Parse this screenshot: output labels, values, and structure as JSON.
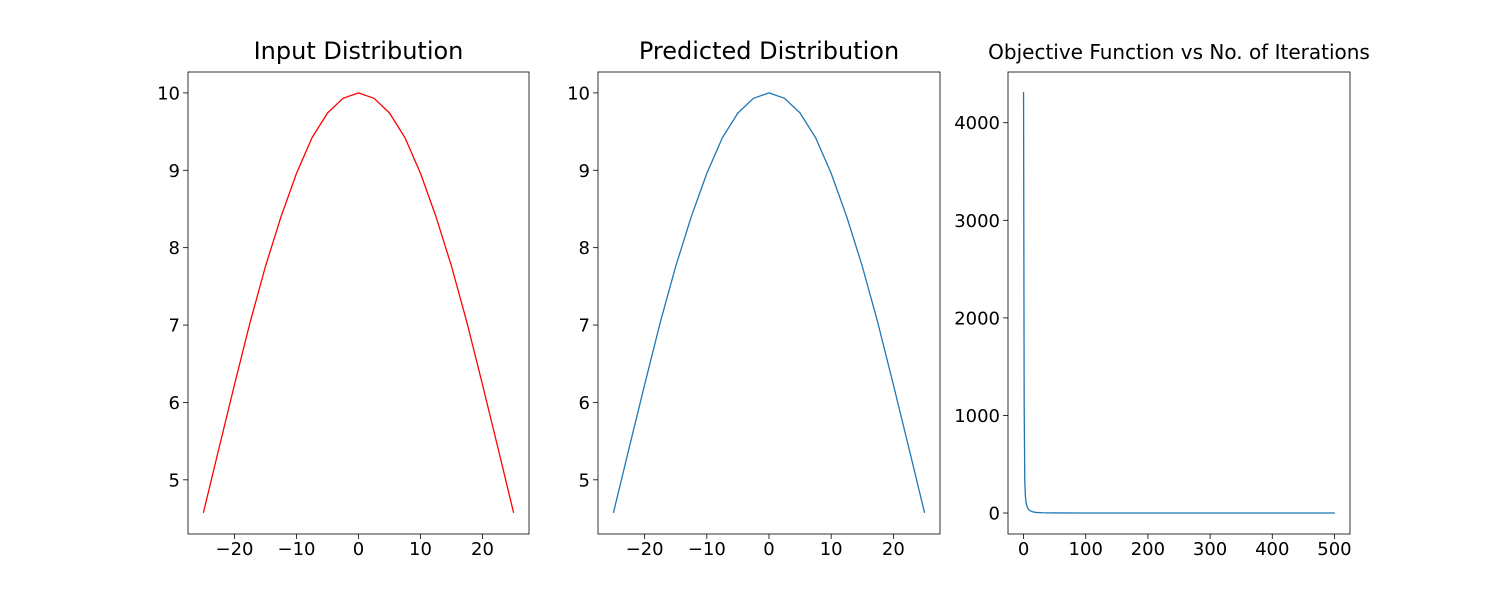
{
  "chart_data": [
    {
      "type": "line",
      "title": "Input Distribution",
      "xlabel": "",
      "ylabel": "",
      "xlim": [
        -27.5,
        27.5
      ],
      "ylim": [
        4.3,
        10.27
      ],
      "xticks": [
        -20,
        -10,
        0,
        10,
        20
      ],
      "xtick_labels": [
        "−20",
        "−10",
        "0",
        "10",
        "20"
      ],
      "yticks": [
        5,
        6,
        7,
        8,
        9,
        10
      ],
      "ytick_labels": [
        "5",
        "6",
        "7",
        "8",
        "9",
        "10"
      ],
      "grid": false,
      "series": [
        {
          "color": "#ff0000",
          "x": [
            -25,
            -22.5,
            -20,
            -17.5,
            -15,
            -12.5,
            -10,
            -7.5,
            -5,
            -2.5,
            0,
            2.5,
            5,
            7.5,
            10,
            12.5,
            15,
            17.5,
            20,
            22.5,
            25
          ],
          "y": [
            4.58,
            5.41,
            6.23,
            7.03,
            7.76,
            8.4,
            8.96,
            9.42,
            9.74,
            9.93,
            10.0,
            9.93,
            9.74,
            9.42,
            8.96,
            8.4,
            7.76,
            7.03,
            6.23,
            5.41,
            4.58
          ]
        }
      ]
    },
    {
      "type": "line",
      "title": "Predicted Distribution",
      "xlabel": "",
      "ylabel": "",
      "xlim": [
        -27.5,
        27.5
      ],
      "ylim": [
        4.3,
        10.27
      ],
      "xticks": [
        -20,
        -10,
        0,
        10,
        20
      ],
      "xtick_labels": [
        "−20",
        "−10",
        "0",
        "10",
        "20"
      ],
      "yticks": [
        5,
        6,
        7,
        8,
        9,
        10
      ],
      "ytick_labels": [
        "5",
        "6",
        "7",
        "8",
        "9",
        "10"
      ],
      "grid": false,
      "series": [
        {
          "color": "#1f77b4",
          "x": [
            -25,
            -22.5,
            -20,
            -17.5,
            -15,
            -12.5,
            -10,
            -7.5,
            -5,
            -2.5,
            0,
            2.5,
            5,
            7.5,
            10,
            12.5,
            15,
            17.5,
            20,
            22.5,
            25
          ],
          "y": [
            4.58,
            5.41,
            6.23,
            7.03,
            7.76,
            8.4,
            8.96,
            9.42,
            9.74,
            9.93,
            10.0,
            9.93,
            9.74,
            9.42,
            8.96,
            8.4,
            7.76,
            7.03,
            6.23,
            5.41,
            4.58
          ]
        }
      ]
    },
    {
      "type": "line",
      "title": "Objective Function vs No. of Iterations",
      "xlabel": "",
      "ylabel": "",
      "xlim": [
        -25,
        525
      ],
      "ylim": [
        -215,
        4520
      ],
      "xticks": [
        0,
        100,
        200,
        300,
        400,
        500
      ],
      "xtick_labels": [
        "0",
        "100",
        "200",
        "300",
        "400",
        "500"
      ],
      "yticks": [
        0,
        1000,
        2000,
        3000,
        4000
      ],
      "ytick_labels": [
        "0",
        "1000",
        "2000",
        "3000",
        "4000"
      ],
      "grid": false,
      "series": [
        {
          "color": "#1f77b4",
          "x": [
            0,
            1,
            2,
            3,
            4,
            5,
            6,
            8,
            10,
            15,
            20,
            30,
            50,
            100,
            200,
            300,
            400,
            500
          ],
          "y": [
            4310,
            1100,
            320,
            170,
            110,
            80,
            60,
            38,
            25,
            12,
            6,
            3,
            1,
            0.5,
            0.3,
            0.2,
            0.1,
            0.1
          ]
        }
      ]
    }
  ]
}
